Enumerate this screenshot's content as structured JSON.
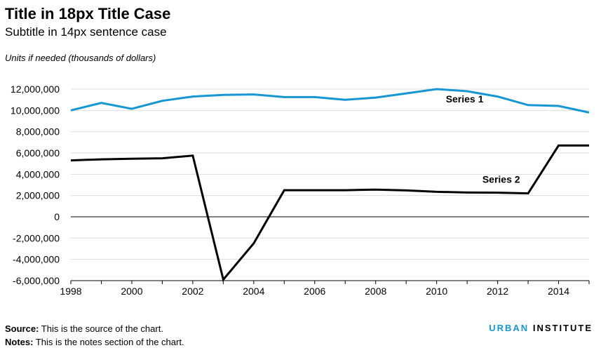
{
  "header": {
    "title": "Title in 18px Title Case",
    "subtitle": "Subtitle in 14px sentence case",
    "units": "Units if needed (thousands of dollars)"
  },
  "footer": {
    "source_label": "Source:",
    "source_text": "This is the source of the chart.",
    "notes_label": "Notes:",
    "notes_text": "This is the notes section of the chart.",
    "brand_word1": "URBAN",
    "brand_word2": "INSTITUTE"
  },
  "colors": {
    "series1": "#1696d2",
    "series2": "#000000",
    "grid": "#dedddd",
    "brand": "#1696d2"
  },
  "chart_data": {
    "type": "line",
    "x": [
      1998,
      1999,
      2000,
      2001,
      2002,
      2003,
      2004,
      2005,
      2006,
      2007,
      2008,
      2009,
      2010,
      2011,
      2012,
      2013,
      2014,
      2015
    ],
    "xticks": [
      1998,
      2000,
      2002,
      2004,
      2006,
      2008,
      2010,
      2012,
      2014
    ],
    "xtick_labels": [
      "1998",
      "2000",
      "2002",
      "2004",
      "2006",
      "2008",
      "2010",
      "2012",
      "2014"
    ],
    "xlim": [
      1998,
      2015
    ],
    "ylim": [
      -6000000,
      12000000
    ],
    "yticks": [
      12000000,
      10000000,
      8000000,
      6000000,
      4000000,
      2000000,
      0,
      -2000000,
      -4000000,
      -6000000
    ],
    "ytick_labels": [
      "12,000,000",
      "10,000,000",
      "8,000,000",
      "6,000,000",
      "4,000,000",
      "2,000,000",
      "0",
      "-2,000,000",
      "-4,000,000",
      "-6,000,000"
    ],
    "grid": true,
    "series": [
      {
        "name": "Series 1",
        "color": "#1696d2",
        "values": [
          10000000,
          10700000,
          10150000,
          10900000,
          11300000,
          11450000,
          11500000,
          11250000,
          11250000,
          11000000,
          11200000,
          11600000,
          12000000,
          11800000,
          11300000,
          10500000,
          10420000,
          9800000
        ]
      },
      {
        "name": "Series 2",
        "color": "#000000",
        "values": [
          5300000,
          5400000,
          5450000,
          5500000,
          5750000,
          -5900000,
          -2500000,
          2500000,
          2500000,
          2500000,
          2550000,
          2480000,
          2350000,
          2280000,
          2270000,
          2200000,
          6700000,
          6700000
        ]
      }
    ],
    "series_labels": [
      {
        "text": "Series 1",
        "at_x": 2010.3,
        "at_y": 10750000
      },
      {
        "text": "Series 2",
        "at_x": 2011.5,
        "at_y": 3200000
      }
    ]
  }
}
